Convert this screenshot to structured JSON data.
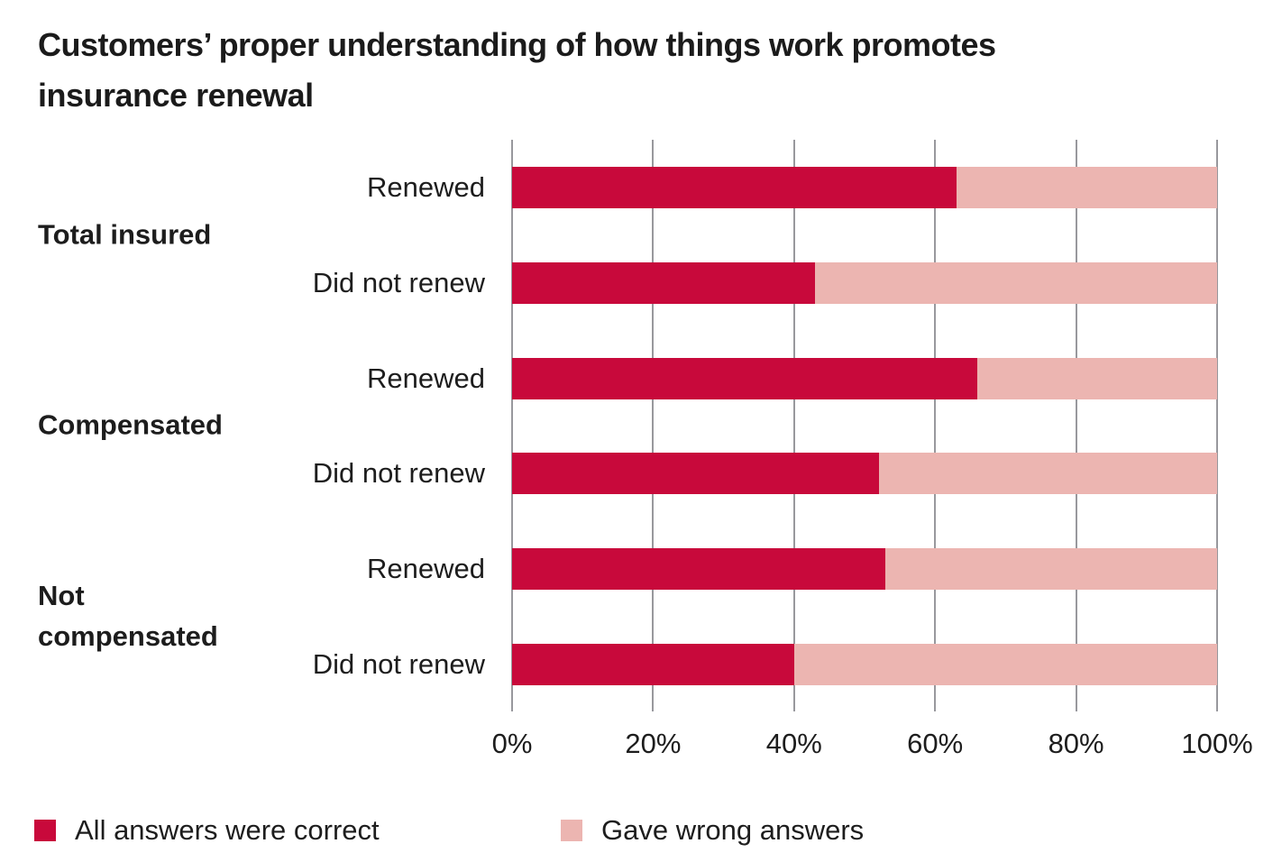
{
  "title": "Customers’ proper understanding of how things work promotes insurance renewal",
  "colors": {
    "correct": "#C8093B",
    "wrong": "#ECB5B1",
    "gridline": "#98989D"
  },
  "legend": [
    {
      "label": "All answers were correct",
      "color_key": "correct"
    },
    {
      "label": "Gave wrong answers",
      "color_key": "wrong"
    }
  ],
  "x_axis": {
    "tick_labels": [
      "0%",
      "20%",
      "40%",
      "60%",
      "80%",
      "100%"
    ],
    "tick_values": [
      0,
      20,
      40,
      60,
      80,
      100
    ],
    "min": 0,
    "max": 100
  },
  "chart_data": {
    "type": "bar",
    "orientation": "horizontal",
    "stacked": true,
    "title": "Customers’ proper understanding of how things work promotes insurance renewal",
    "xlabel": "",
    "ylabel": "",
    "xlim": [
      0,
      100
    ],
    "grid": true,
    "legend_position": "bottom",
    "categories": [
      "Total insured – Renewed",
      "Total insured – Did not renew",
      "Compensated – Renewed",
      "Compensated – Did not renew",
      "Not compensated – Renewed",
      "Not compensated – Did not renew"
    ],
    "series": [
      {
        "name": "All answers were correct",
        "values": [
          63,
          43,
          66,
          52,
          53,
          40
        ]
      },
      {
        "name": "Gave wrong answers",
        "values": [
          37,
          57,
          34,
          48,
          47,
          60
        ]
      }
    ],
    "groups": [
      {
        "label": "Total insured",
        "rows": [
          {
            "label": "Renewed",
            "correct": 63,
            "wrong": 37
          },
          {
            "label": "Did not renew",
            "correct": 43,
            "wrong": 57
          }
        ]
      },
      {
        "label": "Compensated",
        "rows": [
          {
            "label": "Renewed",
            "correct": 66,
            "wrong": 34
          },
          {
            "label": "Did not renew",
            "correct": 52,
            "wrong": 48
          }
        ]
      },
      {
        "label": "Not compensated",
        "rows": [
          {
            "label": "Renewed",
            "correct": 53,
            "wrong": 47
          },
          {
            "label": "Did not renew",
            "correct": 40,
            "wrong": 60
          }
        ]
      }
    ]
  }
}
